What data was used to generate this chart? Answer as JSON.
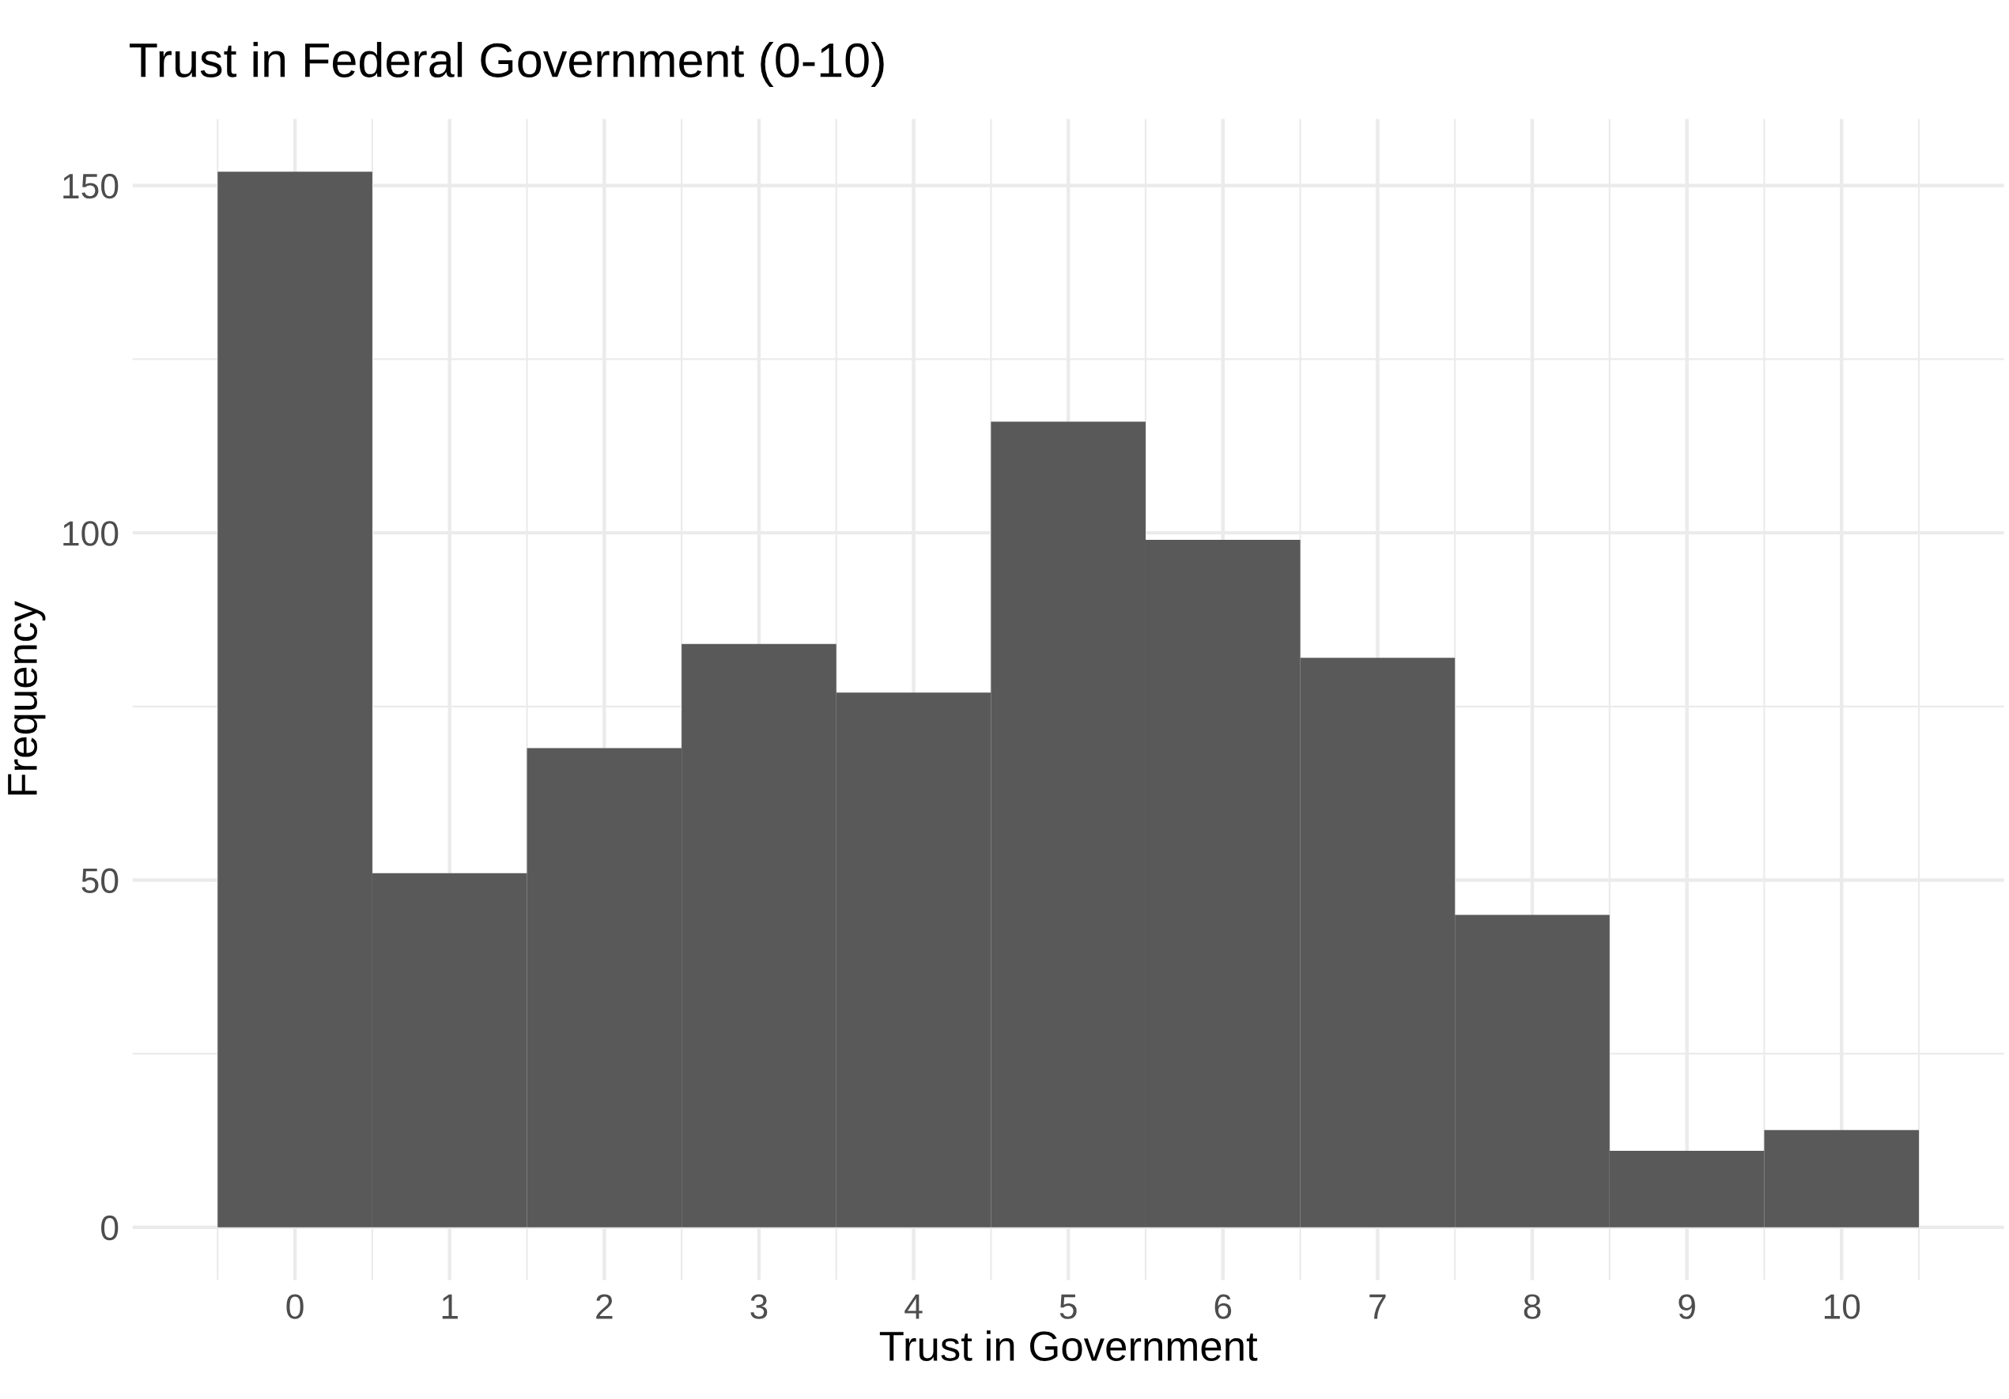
{
  "chart_data": {
    "type": "histogram",
    "title": "Trust in Federal Government (0-10)",
    "xlabel": "Trust in Government",
    "ylabel": "Frequency",
    "bins": [
      -0.5,
      0.5,
      1.5,
      2.5,
      3.5,
      4.5,
      5.5,
      6.5,
      7.5,
      8.5,
      9.5,
      10.5
    ],
    "values": [
      152,
      51,
      69,
      84,
      77,
      116,
      99,
      82,
      45,
      11,
      14
    ],
    "color": "#595959",
    "xlim": [
      -1.05,
      11.05
    ],
    "xticks": [
      0,
      1,
      2,
      3,
      4,
      5,
      6,
      7,
      8,
      9,
      10
    ],
    "ylim": [
      -7.6,
      159.6
    ],
    "yticks": [
      0,
      50,
      100,
      150
    ],
    "grid": true,
    "legend": false
  }
}
